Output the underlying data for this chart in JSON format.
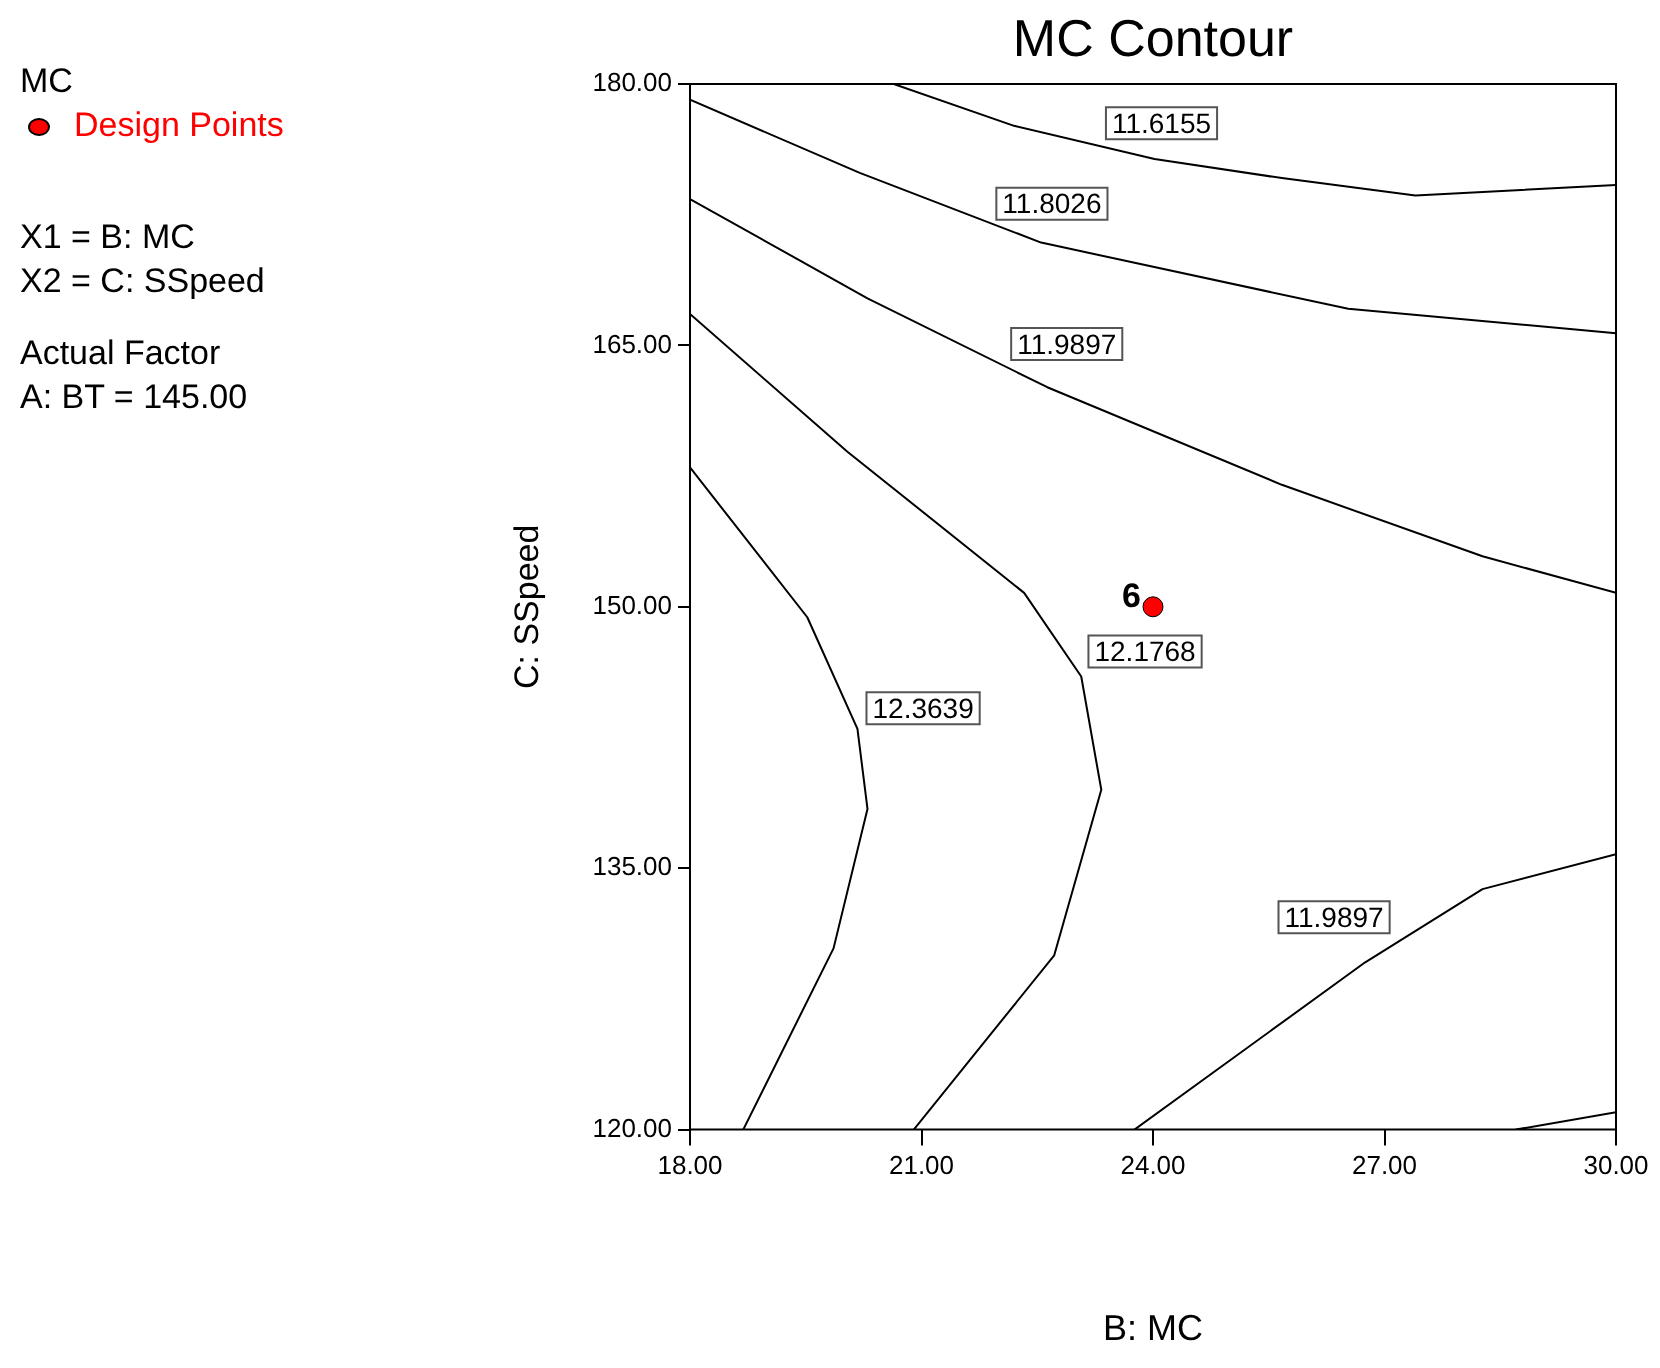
{
  "chart_data": {
    "type": "line",
    "title": "MC Contour",
    "xlabel": "B: MC",
    "ylabel": "C: SSpeed",
    "legend_title": "MC",
    "legend": "top left",
    "xlim": [
      18,
      30
    ],
    "ylim": [
      120,
      180
    ],
    "xticks": [
      {
        "value": 18,
        "label": "18.00"
      },
      {
        "value": 21,
        "label": "21.00"
      },
      {
        "value": 24,
        "label": "24.00"
      },
      {
        "value": 27,
        "label": "27.00"
      },
      {
        "value": 30,
        "label": "30.00"
      }
    ],
    "yticks": [
      {
        "value": 120,
        "label": "120.00"
      },
      {
        "value": 135,
        "label": "135.00"
      },
      {
        "value": 150,
        "label": "150.00"
      },
      {
        "value": 165,
        "label": "165.00"
      },
      {
        "value": 180,
        "label": "180.00"
      }
    ],
    "marker": "none",
    "series": [
      {
        "name": "11.6155",
        "color": "#000000",
        "x": [
          20.64,
          22.2,
          24.02,
          25.67,
          27.4,
          30
        ],
        "values": [
          180,
          177.6,
          175.7,
          174.6,
          173.6,
          174.2
        ]
      },
      {
        "name": "11.8026",
        "color": "#000000",
        "x": [
          18,
          20.2,
          22.55,
          26.53,
          30
        ],
        "values": [
          179.1,
          174.9,
          170.9,
          167.1,
          165.7
        ]
      },
      {
        "name": "11.9897",
        "color": "#000000",
        "x": [
          18,
          20.3,
          22.63,
          25.67,
          28.27,
          30
        ],
        "values": [
          173.4,
          167.7,
          162.6,
          157.0,
          152.9,
          150.8
        ]
      },
      {
        "name": "12.1768",
        "color": "#000000",
        "x": [
          18,
          20.04,
          22.33,
          23.07,
          23.33,
          22.72,
          20.9
        ],
        "values": [
          166.8,
          158.9,
          150.8,
          146.0,
          139.5,
          130.0,
          120
        ]
      },
      {
        "name": "12.3639",
        "color": "#000000",
        "x": [
          18,
          19.52,
          20.17,
          20.3,
          19.86,
          18.69
        ],
        "values": [
          158.0,
          149.4,
          143.0,
          138.4,
          130.4,
          120
        ]
      },
      {
        "name": "11.9897",
        "color": "#000000",
        "x": [
          23.76,
          26.75,
          28.27,
          30
        ],
        "values": [
          120,
          129.6,
          133.8,
          135.8
        ]
      },
      {
        "color": "#000000",
        "x": [
          28.7,
          30
        ],
        "values": [
          120,
          121.0
        ]
      },
      {
        "name": "Design Points",
        "type": "scatter",
        "marker": "circle",
        "color": "#ff0000",
        "x": [
          24
        ],
        "values": [
          150
        ]
      }
    ],
    "annotations": [
      {
        "text": "6",
        "x": 24,
        "y": 150
      },
      "X1 = B: MC",
      "X2 = C: SSpeed",
      "Actual Factor",
      "A: BT = 145.00"
    ]
  }
}
